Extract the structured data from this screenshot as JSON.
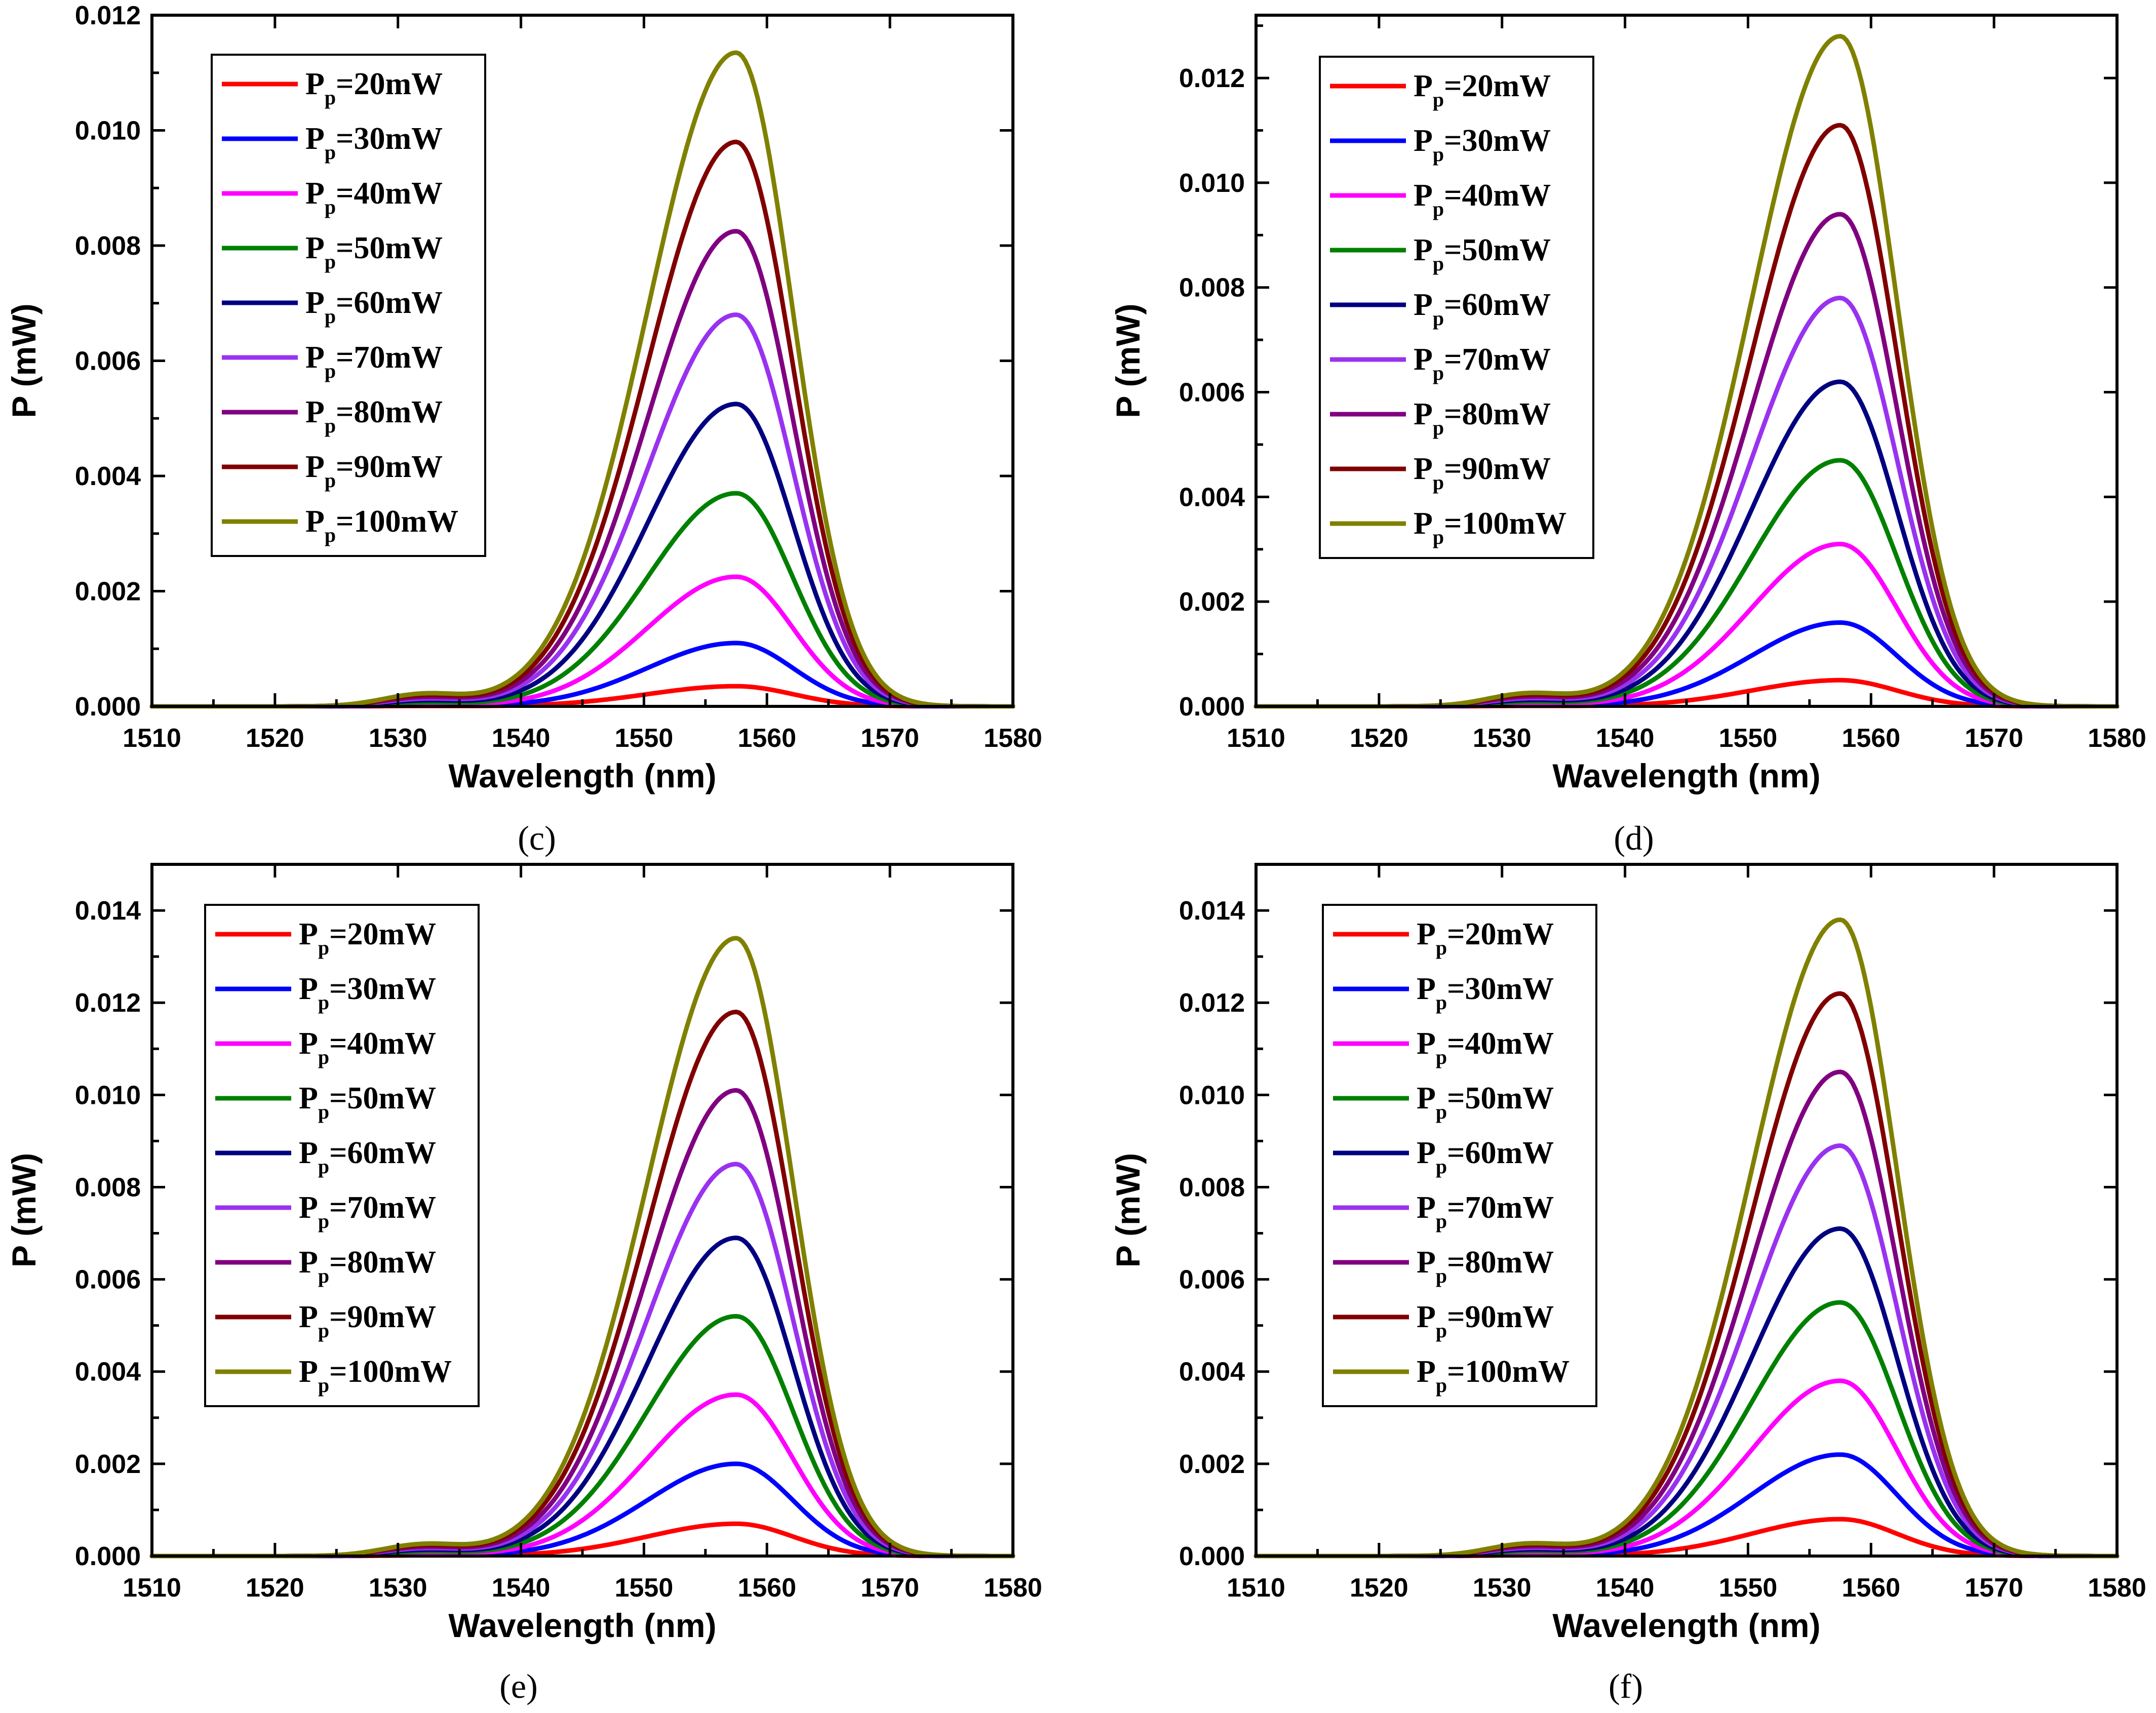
{
  "figure": {
    "panels": [
      {
        "label": "(c)"
      },
      {
        "label": "(d)"
      },
      {
        "label": "(e)"
      },
      {
        "label": "(f)"
      }
    ]
  },
  "colors": {
    "20mW": "#ff0000",
    "30mW": "#0000ff",
    "40mW": "#ff00ff",
    "50mW": "#008000",
    "60mW": "#000080",
    "70mW": "#9932f0",
    "80mW": "#800080",
    "90mW": "#800000",
    "100mW": "#808000"
  },
  "chart_data": [
    {
      "type": "line",
      "panel_label": "(c)",
      "xlabel": "Wavelength (nm)",
      "ylabel": "P (mW)",
      "xlim": [
        1510,
        1580
      ],
      "ylim": [
        0,
        0.012
      ],
      "xticks": [
        "1510",
        "1520",
        "1530",
        "1540",
        "1550",
        "1560",
        "1570",
        "1580"
      ],
      "yticks": [
        "0.000",
        "0.002",
        "0.004",
        "0.006",
        "0.008",
        "0.010",
        "0.012"
      ],
      "legend_position": "top-left",
      "grid": false,
      "peak_wavelength": 1557.5,
      "series": [
        {
          "main": "P",
          "sub": "p",
          "suffix": "=20mW",
          "peak": 0.00035
        },
        {
          "main": "P",
          "sub": "p",
          "suffix": "=30mW",
          "peak": 0.0011
        },
        {
          "main": "P",
          "sub": "p",
          "suffix": "=40mW",
          "peak": 0.00225
        },
        {
          "main": "P",
          "sub": "p",
          "suffix": "=50mW",
          "peak": 0.0037
        },
        {
          "main": "P",
          "sub": "p",
          "suffix": "=60mW",
          "peak": 0.00525
        },
        {
          "main": "P",
          "sub": "p",
          "suffix": "=70mW",
          "peak": 0.0068
        },
        {
          "main": "P",
          "sub": "p",
          "suffix": "=80mW",
          "peak": 0.00825
        },
        {
          "main": "P",
          "sub": "p",
          "suffix": "=90mW",
          "peak": 0.0098
        },
        {
          "main": "P",
          "sub": "p",
          "suffix": "=100mW",
          "peak": 0.01135
        }
      ]
    },
    {
      "type": "line",
      "panel_label": "(d)",
      "xlabel": "Wavelength (nm)",
      "ylabel": "P (mW)",
      "xlim": [
        1510,
        1580
      ],
      "ylim": [
        0,
        0.0132
      ],
      "xticks": [
        "1510",
        "1520",
        "1530",
        "1540",
        "1550",
        "1560",
        "1570",
        "1580"
      ],
      "yticks": [
        "0.000",
        "0.002",
        "0.004",
        "0.006",
        "0.008",
        "0.010",
        "0.012"
      ],
      "legend_position": "top-left",
      "grid": false,
      "peak_wavelength": 1557.5,
      "series": [
        {
          "main": "P",
          "sub": "p",
          "suffix": "=20mW",
          "peak": 0.0005
        },
        {
          "main": "P",
          "sub": "p",
          "suffix": "=30mW",
          "peak": 0.0016
        },
        {
          "main": "P",
          "sub": "p",
          "suffix": "=40mW",
          "peak": 0.0031
        },
        {
          "main": "P",
          "sub": "p",
          "suffix": "=50mW",
          "peak": 0.0047
        },
        {
          "main": "P",
          "sub": "p",
          "suffix": "=60mW",
          "peak": 0.0062
        },
        {
          "main": "P",
          "sub": "p",
          "suffix": "=70mW",
          "peak": 0.0078
        },
        {
          "main": "P",
          "sub": "p",
          "suffix": "=80mW",
          "peak": 0.0094
        },
        {
          "main": "P",
          "sub": "p",
          "suffix": "=90mW",
          "peak": 0.0111
        },
        {
          "main": "P",
          "sub": "p",
          "suffix": "=100mW",
          "peak": 0.0128
        }
      ]
    },
    {
      "type": "line",
      "panel_label": "(e)",
      "xlabel": "Wavelength (nm)",
      "ylabel": "P (mW)",
      "xlim": [
        1510,
        1580
      ],
      "ylim": [
        0,
        0.015
      ],
      "xticks": [
        "1510",
        "1520",
        "1530",
        "1540",
        "1550",
        "1560",
        "1570",
        "1580"
      ],
      "yticks": [
        "0.000",
        "0.002",
        "0.004",
        "0.006",
        "0.008",
        "0.010",
        "0.012",
        "0.014"
      ],
      "legend_position": "top-left",
      "grid": false,
      "peak_wavelength": 1557.5,
      "series": [
        {
          "main": "P",
          "sub": "p",
          "suffix": "=20mW",
          "peak": 0.0007
        },
        {
          "main": "P",
          "sub": "p",
          "suffix": "=30mW",
          "peak": 0.002
        },
        {
          "main": "P",
          "sub": "p",
          "suffix": "=40mW",
          "peak": 0.0035
        },
        {
          "main": "P",
          "sub": "p",
          "suffix": "=50mW",
          "peak": 0.0052
        },
        {
          "main": "P",
          "sub": "p",
          "suffix": "=60mW",
          "peak": 0.0069
        },
        {
          "main": "P",
          "sub": "p",
          "suffix": "=70mW",
          "peak": 0.0085
        },
        {
          "main": "P",
          "sub": "p",
          "suffix": "=80mW",
          "peak": 0.0101
        },
        {
          "main": "P",
          "sub": "p",
          "suffix": "=90mW",
          "peak": 0.0118
        },
        {
          "main": "P",
          "sub": "p",
          "suffix": "=100mW",
          "peak": 0.0134
        }
      ]
    },
    {
      "type": "line",
      "panel_label": "(f)",
      "xlabel": "Wavelength (nm)",
      "ylabel": "P (mW)",
      "xlim": [
        1510,
        1580
      ],
      "ylim": [
        0,
        0.015
      ],
      "xticks": [
        "1510",
        "1520",
        "1530",
        "1540",
        "1550",
        "1560",
        "1570",
        "1580"
      ],
      "yticks": [
        "0.000",
        "0.002",
        "0.004",
        "0.006",
        "0.008",
        "0.010",
        "0.012",
        "0.014"
      ],
      "legend_position": "top-left",
      "grid": false,
      "peak_wavelength": 1557.5,
      "series": [
        {
          "main": "P",
          "sub": "p",
          "suffix": "=20mW",
          "peak": 0.0008
        },
        {
          "main": "P",
          "sub": "p",
          "suffix": "=30mW",
          "peak": 0.0022
        },
        {
          "main": "P",
          "sub": "p",
          "suffix": "=40mW",
          "peak": 0.0038
        },
        {
          "main": "P",
          "sub": "p",
          "suffix": "=50mW",
          "peak": 0.0055
        },
        {
          "main": "P",
          "sub": "p",
          "suffix": "=60mW",
          "peak": 0.0071
        },
        {
          "main": "P",
          "sub": "p",
          "suffix": "=70mW",
          "peak": 0.0089
        },
        {
          "main": "P",
          "sub": "p",
          "suffix": "=80mW",
          "peak": 0.0105
        },
        {
          "main": "P",
          "sub": "p",
          "suffix": "=90mW",
          "peak": 0.0122
        },
        {
          "main": "P",
          "sub": "p",
          "suffix": "=100mW",
          "peak": 0.0138
        }
      ]
    }
  ]
}
